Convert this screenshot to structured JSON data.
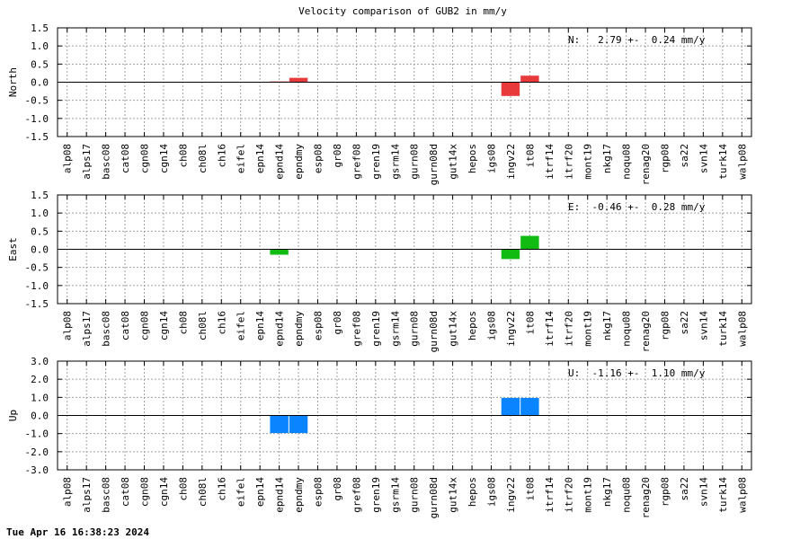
{
  "title": "Velocity comparison of GUB2 in mm/y",
  "timestamp": "Tue Apr 16 16:38:23 2024",
  "chart_data": {
    "type": "bar",
    "title": "Velocity comparison of GUB2 in mm/y",
    "categories": [
      "alp08",
      "alps17",
      "basc08",
      "cat08",
      "cgn08",
      "cgn14",
      "ch08",
      "ch08l",
      "ch16",
      "eifel",
      "epn14",
      "epnd14",
      "epndmy",
      "esp08",
      "gr08",
      "gref08",
      "gren19",
      "gsrm14",
      "gurn08",
      "gurn08d",
      "gut14x",
      "hepos",
      "igs08",
      "ingv22",
      "it08",
      "itrf14",
      "itrf20",
      "mont19",
      "nkg17",
      "noqu08",
      "renag20",
      "rgp08",
      "sa22",
      "svn14",
      "turk14",
      "walp08"
    ],
    "panels": [
      {
        "ylabel": "North",
        "annotation": "N:   2.79 +-  0.24 mm/y",
        "ylim": [
          -1.5,
          1.5
        ],
        "yticks": [
          "1.5",
          "1.0",
          "0.5",
          "0.0",
          "-0.5",
          "-1.0",
          "-1.5"
        ],
        "color": "#e83a3a",
        "values": [
          0,
          0,
          0,
          0,
          0,
          0,
          0,
          0,
          0,
          0,
          0,
          0.02,
          0.12,
          0,
          0,
          0,
          0,
          0,
          0,
          0,
          0,
          0,
          0,
          -0.38,
          0.18,
          0,
          0,
          0,
          0,
          0,
          0,
          0,
          0,
          0,
          0,
          0
        ]
      },
      {
        "ylabel": "East",
        "annotation": "E:  -0.46 +-  0.28 mm/y",
        "ylim": [
          -1.5,
          1.5
        ],
        "yticks": [
          "1.5",
          "1.0",
          "0.5",
          "0.0",
          "-0.5",
          "-1.0",
          "-1.5"
        ],
        "color": "#11bb11",
        "values": [
          0,
          0,
          0,
          0,
          0,
          0,
          0,
          0,
          0,
          0,
          0,
          -0.15,
          0,
          0,
          0,
          0,
          0,
          0,
          0,
          0,
          0,
          0,
          0,
          -0.27,
          0.37,
          0,
          0,
          0,
          0,
          0,
          0,
          0,
          0,
          0,
          0,
          0
        ]
      },
      {
        "ylabel": "Up",
        "annotation": "U:  -1.16 +-  1.10 mm/y",
        "ylim": [
          -3.0,
          3.0
        ],
        "yticks": [
          "3.0",
          "2.0",
          "1.0",
          "0.0",
          "-1.0",
          "-2.0",
          "-3.0"
        ],
        "color": "#0a84ff",
        "values": [
          0,
          0,
          0,
          0,
          0,
          0,
          0,
          0,
          0,
          0,
          0,
          -0.97,
          -0.97,
          0,
          0,
          0,
          0,
          0,
          0,
          0,
          0,
          0,
          0,
          0.97,
          0.97,
          0,
          0,
          0,
          0,
          0,
          0,
          0,
          0,
          0,
          0,
          0
        ]
      }
    ],
    "grid": true
  }
}
